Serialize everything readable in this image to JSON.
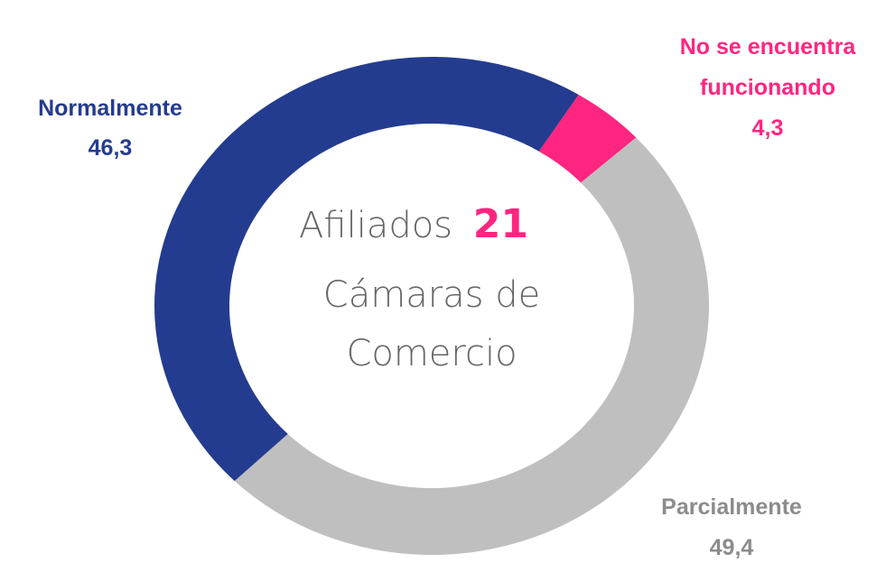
{
  "chart_data": {
    "type": "donut",
    "categories": [
      "No se encuentra funcionando",
      "Parcialmente",
      "Normalmente"
    ],
    "values": [
      4.3,
      49.4,
      46.3
    ],
    "value_labels": [
      "4,3",
      "49,4",
      "46,3"
    ],
    "colors": [
      "#ff2580",
      "#bfbfbf",
      "#243c8f"
    ],
    "label_colors": [
      "#ff2580",
      "#8c8c8c",
      "#243c8f"
    ],
    "center_text": [
      "Afiliados",
      "21",
      "Cámaras de",
      "Comercio"
    ]
  }
}
